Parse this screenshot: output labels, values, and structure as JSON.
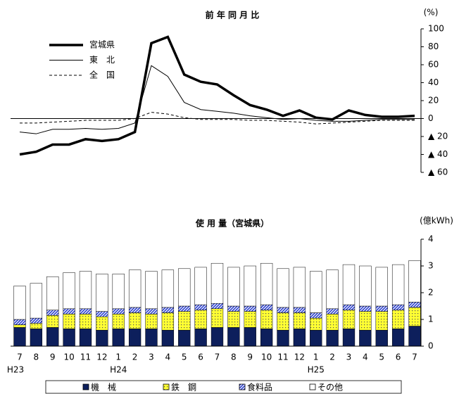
{
  "chart_data": [
    {
      "type": "line",
      "title": "前 年 同 月 比",
      "unit_label": "(%)",
      "ylim": [
        -60,
        100
      ],
      "yticks": [
        100,
        80,
        60,
        40,
        20,
        0,
        {
          "value": -20,
          "label": "▲ 20"
        },
        {
          "value": -40,
          "label": "▲ 40"
        },
        {
          "value": -60,
          "label": "▲ 60"
        }
      ],
      "zero_line": true,
      "series": [
        {
          "name": "宮城県",
          "color": "#000000",
          "line_width": 3.5,
          "dash": false,
          "values": [
            -40,
            -37,
            -29,
            -29,
            -23,
            -25,
            -23,
            -15,
            84,
            91,
            49,
            41,
            38,
            26,
            15,
            10,
            3,
            9,
            1,
            -1,
            9,
            4,
            2,
            2,
            3
          ]
        },
        {
          "name": "東　北",
          "color": "#000000",
          "line_width": 1,
          "dash": false,
          "values": [
            -15,
            -17,
            -12,
            -12,
            -11,
            -12,
            -11,
            -5,
            59,
            47,
            18,
            10,
            8,
            6,
            3,
            1,
            -1,
            0,
            -2,
            -3,
            -3,
            -2,
            -1,
            -1,
            -1
          ]
        },
        {
          "name": "全　国",
          "color": "#000000",
          "line_width": 1,
          "dash": true,
          "values": [
            -5,
            -5,
            -4,
            -3,
            -2,
            -2,
            -2,
            0,
            7,
            5,
            1,
            -1,
            -1,
            -1,
            -2,
            -2,
            -3,
            -4,
            -6,
            -5,
            -4,
            -3,
            -2,
            -2,
            -2
          ]
        }
      ]
    },
    {
      "type": "stacked_bar",
      "title": "使 用 量（宮城県）",
      "unit_label": "(億kWh)",
      "categories": [
        "7",
        "8",
        "9",
        "10",
        "11",
        "12",
        "1",
        "2",
        "3",
        "4",
        "5",
        "6",
        "7",
        "8",
        "9",
        "10",
        "11",
        "12",
        "1",
        "2",
        "3",
        "4",
        "5",
        "6",
        "7"
      ],
      "eras": [
        "H23",
        null,
        null,
        null,
        null,
        null,
        "H24",
        null,
        null,
        null,
        null,
        null,
        null,
        null,
        null,
        null,
        null,
        null,
        "H25",
        null,
        null,
        null,
        null,
        null,
        null
      ],
      "ylim": [
        0,
        4
      ],
      "yticks": [
        0,
        1,
        2,
        3,
        4
      ],
      "series": [
        {
          "name": "機　械",
          "color": "#0d1f5c",
          "pattern": "solid",
          "values": [
            0.7,
            0.65,
            0.7,
            0.65,
            0.65,
            0.6,
            0.65,
            0.65,
            0.65,
            0.6,
            0.6,
            0.65,
            0.7,
            0.7,
            0.7,
            0.65,
            0.6,
            0.65,
            0.6,
            0.6,
            0.65,
            0.6,
            0.6,
            0.65,
            0.75
          ]
        },
        {
          "name": "鉄　鋼",
          "color": "#ffff33",
          "pattern": "dots",
          "values": [
            0.1,
            0.2,
            0.45,
            0.55,
            0.55,
            0.5,
            0.55,
            0.6,
            0.55,
            0.65,
            0.7,
            0.7,
            0.7,
            0.6,
            0.6,
            0.7,
            0.65,
            0.6,
            0.45,
            0.6,
            0.7,
            0.7,
            0.7,
            0.7,
            0.7
          ]
        },
        {
          "name": "食料品",
          "color": "#2a3fd0",
          "pattern": "hatch",
          "values": [
            0.2,
            0.2,
            0.2,
            0.2,
            0.2,
            0.2,
            0.2,
            0.2,
            0.2,
            0.2,
            0.2,
            0.2,
            0.2,
            0.2,
            0.2,
            0.2,
            0.2,
            0.2,
            0.2,
            0.2,
            0.2,
            0.2,
            0.2,
            0.2,
            0.2
          ]
        },
        {
          "name": "その他",
          "color": "#ffffff",
          "pattern": "solid",
          "values": [
            1.25,
            1.3,
            1.25,
            1.35,
            1.4,
            1.4,
            1.3,
            1.4,
            1.4,
            1.4,
            1.4,
            1.4,
            1.5,
            1.45,
            1.5,
            1.55,
            1.45,
            1.5,
            1.55,
            1.45,
            1.5,
            1.5,
            1.45,
            1.5,
            1.55
          ]
        }
      ]
    }
  ]
}
